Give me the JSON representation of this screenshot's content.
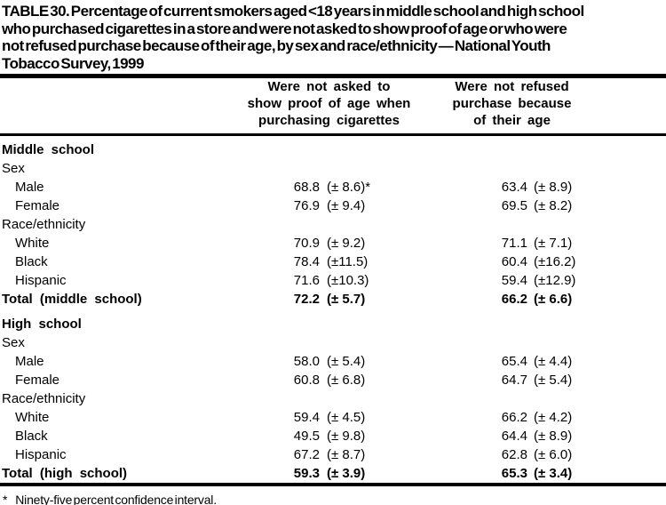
{
  "title_lines": [
    "TABLE 30. Percentage of current smokers aged <18 years in middle school and high school",
    "who purchased cigarettes in a store and were not asked to show proof of age or who were",
    "not refused purchase because of their age, by sex and race/ethnicity — National Youth",
    "Tobacco Survey, 1999"
  ],
  "header": {
    "col1_lines": [
      "Were not asked to",
      "show proof of age when",
      "purchasing cigarettes"
    ],
    "col2_lines": [
      "Were not refused",
      "purchase because",
      "of their age"
    ]
  },
  "table": {
    "rows": [
      {
        "label": "Middle school",
        "indent": 0,
        "bold": true,
        "gap_before": false,
        "v1": "",
        "ci1": "",
        "v2": "",
        "ci2": ""
      },
      {
        "label": "Sex",
        "indent": 0,
        "bold": false,
        "gap_before": false,
        "v1": "",
        "ci1": "",
        "v2": "",
        "ci2": ""
      },
      {
        "label": "Male",
        "indent": 1,
        "bold": false,
        "gap_before": false,
        "v1": "68.8",
        "ci1": "(± 8.6)*",
        "v2": "63.4",
        "ci2": "(± 8.9)"
      },
      {
        "label": "Female",
        "indent": 1,
        "bold": false,
        "gap_before": false,
        "v1": "76.9",
        "ci1": "(± 9.4)",
        "v2": "69.5",
        "ci2": "(± 8.2)"
      },
      {
        "label": "Race/ethnicity",
        "indent": 0,
        "bold": false,
        "gap_before": false,
        "v1": "",
        "ci1": "",
        "v2": "",
        "ci2": ""
      },
      {
        "label": "White",
        "indent": 1,
        "bold": false,
        "gap_before": false,
        "v1": "70.9",
        "ci1": "(± 9.2)",
        "v2": "71.1",
        "ci2": "(± 7.1)"
      },
      {
        "label": "Black",
        "indent": 1,
        "bold": false,
        "gap_before": false,
        "v1": "78.4",
        "ci1": "(±11.5)",
        "v2": "60.4",
        "ci2": "(±16.2)"
      },
      {
        "label": "Hispanic",
        "indent": 1,
        "bold": false,
        "gap_before": false,
        "v1": "71.6",
        "ci1": "(±10.3)",
        "v2": "59.4",
        "ci2": "(±12.9)"
      },
      {
        "label": "Total (middle school)",
        "indent": 0,
        "bold": true,
        "gap_before": false,
        "v1": "72.2",
        "ci1": "(± 5.7)",
        "v2": "66.2",
        "ci2": "(± 6.6)"
      },
      {
        "label": "High school",
        "indent": 0,
        "bold": true,
        "gap_before": true,
        "v1": "",
        "ci1": "",
        "v2": "",
        "ci2": ""
      },
      {
        "label": "Sex",
        "indent": 0,
        "bold": false,
        "gap_before": false,
        "v1": "",
        "ci1": "",
        "v2": "",
        "ci2": ""
      },
      {
        "label": "Male",
        "indent": 1,
        "bold": false,
        "gap_before": false,
        "v1": "58.0",
        "ci1": "(± 5.4)",
        "v2": "65.4",
        "ci2": "(± 4.4)"
      },
      {
        "label": "Female",
        "indent": 1,
        "bold": false,
        "gap_before": false,
        "v1": "60.8",
        "ci1": "(± 6.8)",
        "v2": "64.7",
        "ci2": "(± 5.4)"
      },
      {
        "label": "Race/ethnicity",
        "indent": 0,
        "bold": false,
        "gap_before": false,
        "v1": "",
        "ci1": "",
        "v2": "",
        "ci2": ""
      },
      {
        "label": "White",
        "indent": 1,
        "bold": false,
        "gap_before": false,
        "v1": "59.4",
        "ci1": "(± 4.5)",
        "v2": "66.2",
        "ci2": "(± 4.2)"
      },
      {
        "label": "Black",
        "indent": 1,
        "bold": false,
        "gap_before": false,
        "v1": "49.5",
        "ci1": "(± 9.8)",
        "v2": "64.4",
        "ci2": "(± 8.9)"
      },
      {
        "label": "Hispanic",
        "indent": 1,
        "bold": false,
        "gap_before": false,
        "v1": "67.2",
        "ci1": "(± 8.7)",
        "v2": "62.8",
        "ci2": "(± 6.0)"
      },
      {
        "label": "Total (high school)",
        "indent": 0,
        "bold": true,
        "gap_before": false,
        "v1": "59.3",
        "ci1": "(± 3.9)",
        "v2": "65.3",
        "ci2": "(± 3.4)"
      }
    ]
  },
  "footnote": {
    "marker": "*",
    "text": "Ninety-five percent confidence interval."
  },
  "colors": {
    "text": "#000000",
    "background": "#ffffff",
    "rule": "#000000"
  }
}
